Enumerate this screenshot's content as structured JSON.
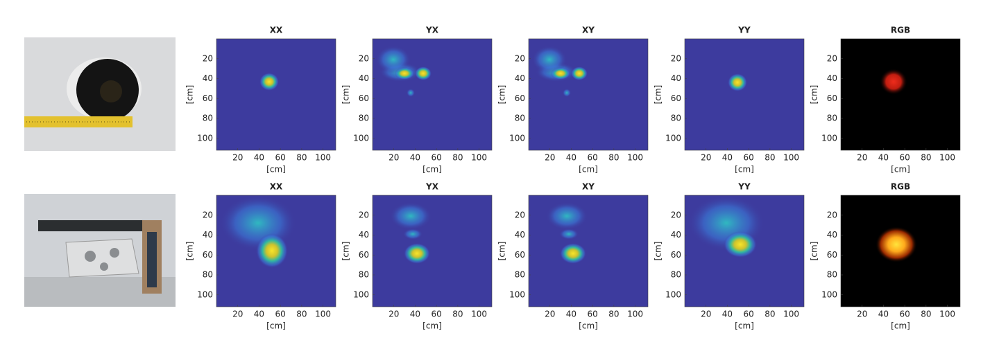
{
  "rows": [
    {
      "titles": [
        "XX",
        "YX",
        "XY",
        "YY",
        "RGB"
      ]
    },
    {
      "titles": [
        "XX",
        "YX",
        "XY",
        "YY",
        "RGB"
      ]
    }
  ],
  "axes": {
    "xlim": [
      0,
      112
    ],
    "ylim": [
      0,
      112
    ],
    "xticks": [
      20,
      40,
      60,
      80,
      100
    ],
    "yticks": [
      20,
      40,
      60,
      80,
      100
    ],
    "xlabel": "[cm]",
    "ylabel": "[cm]"
  }
}
